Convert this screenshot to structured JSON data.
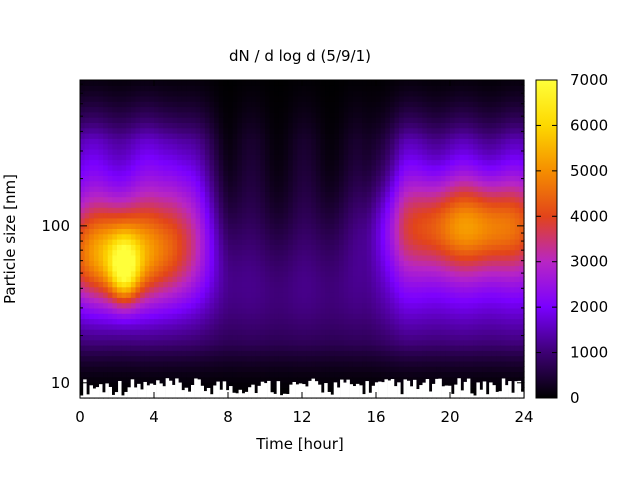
{
  "chart_data": {
    "type": "heatmap",
    "title": "dN / d log d (5/9/1)",
    "xlabel": "Time [hour]",
    "ylabel": "Particle size [nm]",
    "x_range": [
      0,
      24
    ],
    "x_ticks": [
      0,
      4,
      8,
      12,
      16,
      20,
      24
    ],
    "y_scale": "log",
    "y_range": [
      8,
      850
    ],
    "y_ticks": [
      10,
      100
    ],
    "colorbar": {
      "min": 0,
      "max": 7000,
      "ticks": [
        0,
        1000,
        2000,
        3000,
        4000,
        5000,
        6000,
        7000
      ],
      "colors": [
        "#000000",
        "#3d0074",
        "#7a00ff",
        "#b826c4",
        "#e2441a",
        "#f58e00",
        "#fdd800",
        "#ffff3a"
      ]
    },
    "features": [
      {
        "region": "hours 0-4, 30-100 nm",
        "peak_value": 6800,
        "description": "high concentration"
      },
      {
        "region": "hours 18-24, 60-130 nm",
        "peak_value": 3300
      },
      {
        "region": "hours 7-16, all sizes",
        "peak_value": 1100
      }
    ]
  }
}
